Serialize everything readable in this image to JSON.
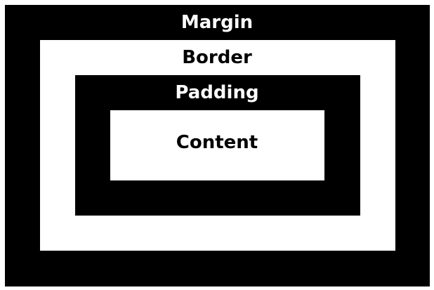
{
  "layers": {
    "margin": {
      "label": "Margin",
      "fill": "#000000",
      "text_color": "#ffffff"
    },
    "border": {
      "label": "Border",
      "fill": "#ffffff",
      "text_color": "#000000"
    },
    "padding": {
      "label": "Padding",
      "fill": "#000000",
      "text_color": "#ffffff"
    },
    "content": {
      "label": "Content",
      "fill": "#ffffff",
      "text_color": "#000000"
    }
  }
}
